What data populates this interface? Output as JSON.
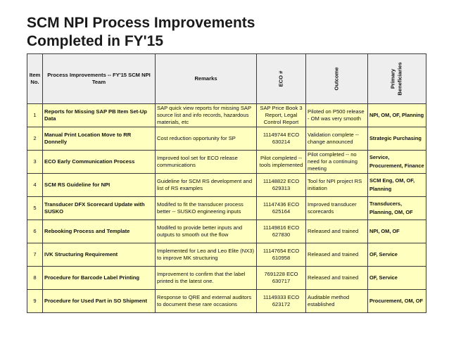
{
  "title": {
    "line1": "SCM NPI Process Improvements",
    "line2": "Completed in FY'15"
  },
  "table": {
    "headers": {
      "item_no": "Item No.",
      "process": "Process Improvements -- FY'15 SCM NPI Team",
      "remarks": "Remarks",
      "eco": "ECO #",
      "outcome": "Outcome",
      "beneficiaries_1": "Primary",
      "beneficiaries_2": "Beneficiaries"
    },
    "rows": [
      {
        "no": "1",
        "process": "Reports for Missing SAP PB Item Set-Up Data",
        "remarks": "SAP quick view reports for missing SAP source list and info records, hazardous materials, etc",
        "eco": "SAP Price Book 3 Report, Legal Control Report",
        "outcome": "Piloted on P500 release - OM was very smooth",
        "beneficiaries": "NPI, OM, OF, Planning"
      },
      {
        "no": "2",
        "process": "Manual Print Location Move to RR Donnelly",
        "remarks": "Cost reduction opportunity for SP",
        "eco": "11149744 ECO 630214",
        "outcome": "Validation complete -- change announced",
        "beneficiaries": "Strategic Purchasing"
      },
      {
        "no": "3",
        "process": "ECO Early Communication Process",
        "remarks": "Improved tool set for ECO release communications",
        "eco": "Pilot completed -- tools implemented",
        "outcome": "Pilot completed -- no need for a continuing meeting",
        "beneficiaries": "Service, Procurement, Finance"
      },
      {
        "no": "4",
        "process": "SCM RS Guideline for NPI",
        "remarks": "Guideline for SCM RS development and list of RS examples",
        "eco": "11148822 ECO 629313",
        "outcome": "Tool for NPI project RS initiation",
        "beneficiaries": "SCM Eng, OM, OF, Planning"
      },
      {
        "no": "5",
        "process": "Transducer DFX Scorecard Update with SUSKO",
        "remarks": "Modifed to fit the transducer process better -- SUSKO engineering inputs",
        "eco": "11147436 ECO 625164",
        "outcome": "Improved transducer scorecards",
        "beneficiaries": "Transducers, Planning, OM, OF"
      },
      {
        "no": "6",
        "process": "Rebooking Process and Template",
        "remarks": "Modifed to provide better inputs and outputs to smooth out the flow",
        "eco": "11149816 ECO 627830",
        "outcome": "Released and trained",
        "beneficiaries": "NPI, OM, OF"
      },
      {
        "no": "7",
        "process": "IVK Structuring Requirement",
        "remarks": "Implemented for Leo and Leo Elite (NX3) to improve MK structuring",
        "eco": "11147654 ECO 610958",
        "outcome": "Released and trained",
        "beneficiaries": "OF, Service"
      },
      {
        "no": "8",
        "process": "Procedure for Barcode Label Printing",
        "remarks": "Improvement to confirm that the label printed is the latest one.",
        "eco": "7691228 ECO 630717",
        "outcome": "Released and trained",
        "beneficiaries": "OF, Service"
      },
      {
        "no": "9",
        "process": "Procedure for Used Part in SO Shipment",
        "remarks": "Response to QRE and external auditors to document these rare occasions",
        "eco": "11149333 ECO 623172",
        "outcome": "Auditable method established",
        "beneficiaries": "Procurement, OM, OF"
      }
    ]
  }
}
